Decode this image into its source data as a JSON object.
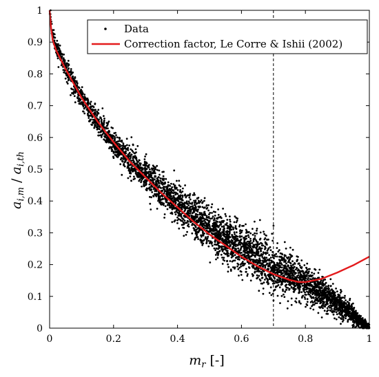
{
  "chart_data": {
    "type": "scatter",
    "xlabel": "m_r [-]",
    "ylabel": "a_{i,m} / a_{i,th}",
    "xlim": [
      0,
      1
    ],
    "ylim": [
      0,
      1
    ],
    "xticks": [
      "0",
      "0.2",
      "0.4",
      "0.6",
      "0.8",
      "1"
    ],
    "yticks": [
      "0",
      "0.1",
      "0.2",
      "0.3",
      "0.4",
      "0.5",
      "0.6",
      "0.7",
      "0.8",
      "0.9",
      "1"
    ],
    "grid": false,
    "legend_position": "top-right",
    "vertical_reference_line": {
      "x": 0.7,
      "style": "dashed",
      "color": "#000000"
    },
    "series": [
      {
        "name": "Data",
        "kind": "scatter",
        "color": "#000000",
        "trend": {
          "x": [
            0.0,
            0.01,
            0.02,
            0.05,
            0.1,
            0.15,
            0.2,
            0.25,
            0.3,
            0.35,
            0.4,
            0.45,
            0.5,
            0.55,
            0.6,
            0.65,
            0.7,
            0.75,
            0.8,
            0.85,
            0.9,
            0.95,
            1.0
          ],
          "y": [
            1.0,
            0.92,
            0.89,
            0.82,
            0.72,
            0.65,
            0.58,
            0.53,
            0.48,
            0.43,
            0.39,
            0.35,
            0.31,
            0.28,
            0.25,
            0.22,
            0.19,
            0.17,
            0.14,
            0.11,
            0.08,
            0.04,
            0.0
          ]
        },
        "spread": [
          0.012,
          0.012,
          0.014,
          0.016,
          0.018,
          0.02,
          0.022,
          0.024,
          0.026,
          0.028,
          0.03,
          0.032,
          0.034,
          0.035,
          0.035,
          0.035,
          0.035,
          0.033,
          0.03,
          0.025,
          0.02,
          0.014,
          0.005
        ],
        "count": 4500
      },
      {
        "name": "Correction factor, Le Corre & Ishii (2002)",
        "kind": "line",
        "color": "#e31a1c",
        "x": [
          0.0,
          0.005,
          0.01,
          0.02,
          0.05,
          0.1,
          0.15,
          0.2,
          0.25,
          0.3,
          0.35,
          0.4,
          0.45,
          0.5,
          0.55,
          0.6,
          0.65,
          0.7,
          0.75,
          0.78,
          0.8,
          0.85,
          0.9,
          0.95,
          1.0
        ],
        "y": [
          1.0,
          0.94,
          0.905,
          0.875,
          0.815,
          0.725,
          0.65,
          0.585,
          0.525,
          0.475,
          0.425,
          0.38,
          0.335,
          0.295,
          0.26,
          0.225,
          0.195,
          0.17,
          0.152,
          0.145,
          0.145,
          0.155,
          0.175,
          0.198,
          0.225
        ]
      }
    ]
  }
}
